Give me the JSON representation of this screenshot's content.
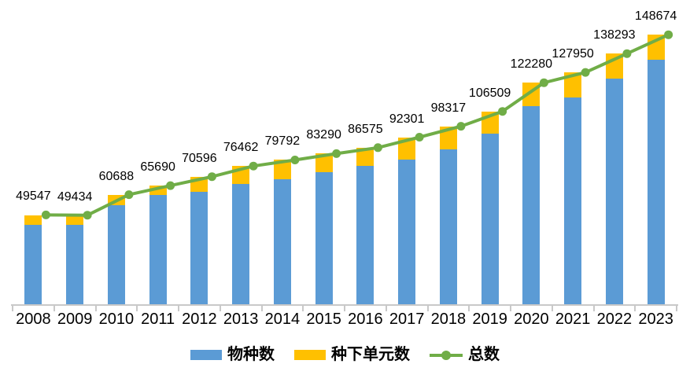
{
  "chart_data": {
    "type": "bar",
    "subtype": "stacked-bars-with-total-line",
    "title": "",
    "xlabel": "",
    "ylabel": "",
    "categories": [
      "2008",
      "2009",
      "2010",
      "2011",
      "2012",
      "2013",
      "2014",
      "2015",
      "2016",
      "2017",
      "2018",
      "2019",
      "2020",
      "2021",
      "2022",
      "2023"
    ],
    "series": [
      {
        "name": "物种数",
        "type": "bar",
        "stack": "total",
        "color": "#5B9BD5",
        "values": [
          44200,
          44200,
          54900,
          60400,
          62100,
          66500,
          69200,
          73100,
          76500,
          80100,
          85500,
          94300,
          109300,
          114000,
          124400,
          134900
        ]
      },
      {
        "name": "种下单元数",
        "type": "bar",
        "stack": "total",
        "color": "#FFC000",
        "values": [
          5300,
          5200,
          5800,
          5300,
          8500,
          10000,
          10600,
          10200,
          10100,
          12200,
          12800,
          12200,
          13000,
          14000,
          13900,
          13800
        ]
      },
      {
        "name": "总数",
        "type": "line",
        "color": "#70AD47",
        "marker": "circle",
        "data_labels": true,
        "values": [
          49547,
          49434,
          60688,
          65690,
          70596,
          76462,
          79792,
          83290,
          86575,
          92301,
          98317,
          106509,
          122280,
          127950,
          138293,
          148674
        ]
      }
    ],
    "data_label_values": [
      "49547",
      "49434",
      "60688",
      "65690",
      "70596",
      "76462",
      "79792",
      "83290",
      "86575",
      "92301",
      "98317",
      "106509",
      "122280",
      "127950",
      "138293",
      "148674"
    ],
    "ylim": [
      0,
      167000
    ],
    "grid": false,
    "y_axis_visible": false,
    "legend_position": "bottom",
    "axis_color": "#C9C9C9",
    "label_color": "#000000"
  },
  "legend": {
    "items": [
      {
        "label": "物种数",
        "color": "#5B9BD5",
        "marker": "rect"
      },
      {
        "label": "种下单元数",
        "color": "#FFC000",
        "marker": "rect"
      },
      {
        "label": "总数",
        "color": "#70AD47",
        "marker": "line-dot"
      }
    ]
  }
}
